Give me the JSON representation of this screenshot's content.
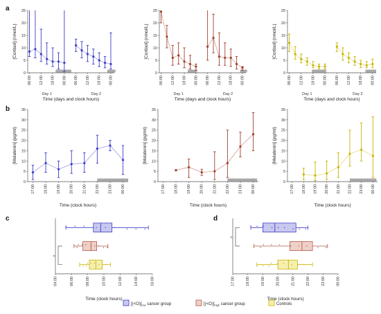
{
  "panel_labels": [
    "a",
    "b",
    "c",
    "d"
  ],
  "legend": {
    "items": [
      {
        "main": "[(<O)]",
        "sub": "low",
        "tail": " cancer group",
        "color": "#3c3cc8",
        "fill": "#c8c8f0"
      },
      {
        "main": "[(<O)]",
        "sub": "high",
        "tail": " cancer group",
        "color": "#b05a4a",
        "fill": "#efd0c8"
      },
      {
        "main": "Controls",
        "sub": "",
        "tail": "",
        "color": "#c8b400",
        "fill": "#f5efb0"
      }
    ]
  },
  "chart_data": [
    {
      "type": "line",
      "id": "a1",
      "panel": "a",
      "color": "#3c3cc8",
      "ylabel": "[Cortisol] (nmol/L)",
      "ylim": [
        0,
        25
      ],
      "xlabel": "Time (days and clock hours)",
      "x_ticks": [
        "06:00",
        "12:00",
        "18:00",
        "00:00",
        "06:00",
        "12:00",
        "18:00",
        "00:00"
      ],
      "day_labels": [
        "Day 1",
        "Day 2"
      ],
      "series": [
        {
          "x": [
            0,
            1,
            2,
            3,
            4,
            5,
            6
          ],
          "y": [
            8.5,
            9.5,
            7.5,
            5.5,
            4.5,
            4.5,
            4.0
          ],
          "lo": [
            6.5,
            6.0,
            4.5,
            3.5,
            2.5,
            1.5,
            0.5
          ],
          "hi": [
            25,
            25,
            17.5,
            12,
            10,
            8,
            25
          ]
        },
        {
          "x": [
            8,
            9,
            10,
            11,
            12,
            13,
            14
          ],
          "y": [
            11.0,
            9.0,
            7.5,
            6.5,
            5.0,
            4.0,
            3.5
          ],
          "lo": [
            8.5,
            6.0,
            4.5,
            3.5,
            2.5,
            2.0,
            1.5
          ],
          "hi": [
            13.5,
            12.5,
            11.0,
            9.5,
            8.0,
            6.5,
            16
          ]
        }
      ],
      "sleep_bars": [
        [
          4.5,
          7.2
        ],
        [
          13.4,
          14.8
        ]
      ]
    },
    {
      "type": "line",
      "id": "a2",
      "panel": "a",
      "color": "#a0402c",
      "ylabel": "[Cortisol] (nmol/L)",
      "ylim": [
        0,
        25
      ],
      "xlabel": "Time (days and clock hours)",
      "x_ticks": [
        "06:00",
        "12:00",
        "18:00",
        "00:00",
        "06:00",
        "12:00",
        "18:00",
        "00:00"
      ],
      "day_labels": [
        "Day 1",
        "Day 2"
      ],
      "series": [
        {
          "x": [
            0,
            1,
            2,
            3,
            4,
            5,
            6
          ],
          "y": [
            24.5,
            14.5,
            6.0,
            7.0,
            4.5,
            3.5,
            2.5
          ],
          "lo": [
            20,
            10,
            3.0,
            3.5,
            2.0,
            1.5,
            1.0
          ],
          "hi": [
            25,
            19,
            11,
            12,
            10,
            7,
            3.5
          ]
        },
        {
          "x": [
            8,
            9,
            10,
            11,
            12,
            13,
            14
          ],
          "y": [
            10.5,
            14.0,
            6.5,
            6.0,
            6.0,
            3.5,
            2.0
          ],
          "lo": [
            5.0,
            8.0,
            3.0,
            3.0,
            2.5,
            1.5,
            1.0
          ],
          "hi": [
            25,
            23.5,
            16,
            12,
            9.5,
            6.5,
            2.5
          ]
        }
      ],
      "sleep_bars": [
        [
          4.6,
          6.2
        ],
        [
          13.6,
          14.8
        ]
      ]
    },
    {
      "type": "line",
      "id": "a3",
      "panel": "a",
      "color": "#c8b400",
      "ylabel": "[Cortisol] (nmol/L)",
      "ylim": [
        0,
        25
      ],
      "xlabel": "Time (days and clock hours)",
      "x_ticks": [
        "06:00",
        "12:00",
        "18:00",
        "00:00",
        "06:00",
        "12:00",
        "18:00",
        "00:00"
      ],
      "day_labels": [
        "Day 1",
        "Day 2"
      ],
      "series": [
        {
          "x": [
            0,
            1,
            2,
            3,
            4,
            5,
            6
          ],
          "y": [
            12.0,
            7.5,
            5.5,
            4.5,
            3.0,
            2.5,
            2.5
          ],
          "lo": [
            8.5,
            5.5,
            4.0,
            3.0,
            2.0,
            1.5,
            1.5
          ],
          "hi": [
            15.5,
            10.5,
            7.5,
            6.0,
            4.5,
            3.5,
            3.5
          ]
        },
        {
          "x": [
            8,
            9,
            10,
            11,
            12,
            13,
            14
          ],
          "y": [
            10.5,
            7.5,
            6.0,
            4.5,
            3.5,
            3.0,
            3.5
          ],
          "lo": [
            8.5,
            5.0,
            4.0,
            3.0,
            2.0,
            2.0,
            2.0
          ],
          "hi": [
            12.0,
            10.0,
            8.0,
            6.5,
            5.0,
            4.5,
            5.5
          ]
        }
      ],
      "sleep_bars": [
        [
          3.8,
          6.2
        ],
        [
          12.8,
          14.6
        ]
      ]
    },
    {
      "type": "line",
      "id": "b1",
      "panel": "b",
      "color": "#3c3cc8",
      "ylabel": "[Melatonin] (pg/ml)",
      "ylim": [
        0,
        35
      ],
      "y_ticks": [
        0,
        5,
        10,
        15,
        20,
        25,
        30,
        35
      ],
      "xlabel": "Time (clock hours)",
      "x_ticks": [
        "17:00",
        "18:00",
        "19:00",
        "20:00",
        "21:00",
        "22:00",
        "23:00",
        "00:00"
      ],
      "series": [
        {
          "x": [
            0,
            1,
            2,
            3,
            4,
            5,
            6,
            7
          ],
          "y": [
            4.5,
            9.0,
            6.0,
            8.5,
            9.0,
            16.0,
            17.5,
            10.5
          ],
          "lo": [
            1.0,
            4.5,
            2.0,
            4.0,
            4.5,
            9.0,
            15.0,
            3.5
          ],
          "hi": [
            8.0,
            14.0,
            10.0,
            15.0,
            14.0,
            22.5,
            20.0,
            17.5
          ]
        }
      ],
      "sleep_bars": [
        [
          5.0,
          7.4
        ]
      ]
    },
    {
      "type": "line",
      "id": "b2",
      "panel": "b",
      "color": "#a0402c",
      "ylabel": "[Melatonin] (pg/ml)",
      "ylim": [
        0,
        35
      ],
      "y_ticks": [
        0,
        5,
        10,
        15,
        20,
        25,
        30,
        35
      ],
      "xlabel": "Time (clock hours)",
      "x_ticks": [
        "17:00",
        "18:00",
        "19:00",
        "20:00",
        "21:00",
        "22:00",
        "23:00",
        "00:00"
      ],
      "series": [
        {
          "x": [
            1,
            2,
            3,
            4,
            5,
            6,
            7
          ],
          "y": [
            5.5,
            7.0,
            4.5,
            5.0,
            9.0,
            17.0,
            23.0
          ],
          "lo": [
            5.5,
            2.0,
            3.0,
            1.0,
            2.0,
            12.0,
            15.0
          ],
          "hi": [
            5.5,
            11.0,
            6.0,
            14.5,
            25.0,
            24.0,
            33.5
          ]
        }
      ],
      "sleep_bars": [
        [
          5.0,
          7.3
        ]
      ]
    },
    {
      "type": "line",
      "id": "b3",
      "panel": "b",
      "color": "#c8b400",
      "ylabel": "[Melatonin] (pg/ml)",
      "ylim": [
        0,
        35
      ],
      "y_ticks": [
        0,
        5,
        10,
        15,
        20,
        25,
        30,
        35
      ],
      "xlabel": "Time (clock hours)",
      "x_ticks": [
        "17:00",
        "18:00",
        "19:00",
        "20:00",
        "21:00",
        "22:00",
        "23:00",
        "00:00"
      ],
      "series": [
        {
          "x": [
            1,
            2,
            3,
            4,
            5,
            6,
            7
          ],
          "y": [
            3.5,
            3.0,
            4.0,
            7.0,
            13.5,
            15.5,
            12.5
          ],
          "lo": [
            1.0,
            0.5,
            1.0,
            2.0,
            7.5,
            10.0,
            2.0
          ],
          "hi": [
            6.5,
            9.5,
            10.0,
            14.0,
            25.0,
            28.5,
            31.5
          ]
        }
      ],
      "sleep_bars": [
        [
          5.0,
          7.3
        ]
      ]
    },
    {
      "type": "box",
      "id": "c",
      "panel": "c",
      "orientation": "horizontal",
      "xlabel": "Time (clock hours)",
      "x_ticks": [
        "04:00",
        "06:00",
        "08:00",
        "10:00",
        "12:00",
        "14:00",
        "16:00"
      ],
      "xlim": [
        4,
        16
      ],
      "significance": "<",
      "boxes": [
        {
          "group": "low",
          "min": 5.3,
          "q1": 8.7,
          "median": 9.6,
          "q3": 11.0,
          "max": 15.5
        },
        {
          "group": "high",
          "min": 6.3,
          "q1": 7.4,
          "median": 8.4,
          "q3": 9.1,
          "max": 10.5
        },
        {
          "group": "controls",
          "min": 7.0,
          "q1": 8.2,
          "median": 9.0,
          "q3": 9.8,
          "max": 10.8
        }
      ]
    },
    {
      "type": "box",
      "id": "d",
      "panel": "d",
      "orientation": "horizontal",
      "xlabel": "Time (clock hours)",
      "x_ticks": [
        "17:00",
        "18:00",
        "19:00",
        "20:00",
        "21:00",
        "22:00",
        "23:00",
        "00:00"
      ],
      "xlim": [
        17,
        24
      ],
      "significance": "<",
      "boxes": [
        {
          "group": "low",
          "min": 18.2,
          "q1": 19.0,
          "median": 19.8,
          "q3": 21.2,
          "max": 22.0
        },
        {
          "group": "high",
          "min": 18.4,
          "q1": 20.8,
          "median": 21.6,
          "q3": 22.3,
          "max": 23.3
        },
        {
          "group": "controls",
          "min": 18.6,
          "q1": 20.0,
          "median": 20.7,
          "q3": 21.3,
          "max": 22.3
        }
      ]
    }
  ]
}
